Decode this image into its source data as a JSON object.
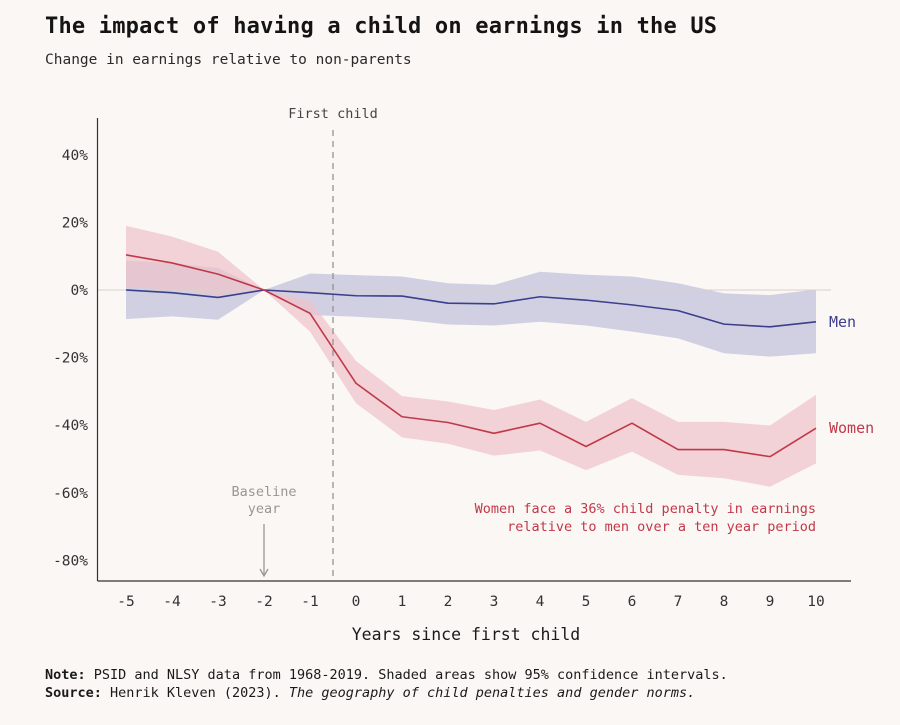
{
  "header": {
    "title": "The impact of having a child on earnings in the US",
    "subtitle": "Change in earnings relative to non-parents"
  },
  "chart_data": {
    "type": "line",
    "title": "The impact of having a child on earnings in the US",
    "subtitle": "Change in earnings relative to non-parents",
    "xlabel": "Years since first child",
    "ylabel": "",
    "x": [
      -5,
      -4,
      -3,
      -2,
      -1,
      0,
      1,
      2,
      3,
      4,
      5,
      6,
      7,
      8,
      9,
      10
    ],
    "xticks": [
      "-5",
      "-4",
      "-3",
      "-2",
      "-1",
      "0",
      "1",
      "2",
      "3",
      "4",
      "5",
      "6",
      "7",
      "8",
      "9",
      "10"
    ],
    "yticks": [
      40,
      20,
      0,
      -20,
      -40,
      -60,
      -80
    ],
    "ytick_labels": [
      "40%",
      "20%",
      "0%",
      "-20%",
      "-40%",
      "-60%",
      "-80%"
    ],
    "ylim": [
      -85,
      52
    ],
    "xlim": [
      -5.6,
      10.75
    ],
    "grid": false,
    "zero_line": true,
    "series": [
      {
        "name": "Men",
        "color": "#3b3f8c",
        "band_color": "#cfcde0",
        "values": [
          0.0,
          -0.8,
          -2.2,
          0.0,
          -0.8,
          -1.7,
          -1.8,
          -3.9,
          -4.1,
          -2.0,
          -3.0,
          -4.4,
          -6.1,
          -10.1,
          -10.9,
          -9.4
        ],
        "ci_upper": [
          8.7,
          8.0,
          6.5,
          0.0,
          4.9,
          4.4,
          4.0,
          2.0,
          1.5,
          5.4,
          4.5,
          4.0,
          2.0,
          -1.0,
          -1.5,
          0.2
        ],
        "ci_lower": [
          -8.6,
          -7.8,
          -8.8,
          0.0,
          -7.4,
          -7.9,
          -8.7,
          -10.2,
          -10.5,
          -9.4,
          -10.5,
          -12.3,
          -14.3,
          -18.7,
          -19.7,
          -18.7
        ]
      },
      {
        "name": "Women",
        "color": "#c0394a",
        "band_color": "#efc4cb",
        "values": [
          10.4,
          8.0,
          4.7,
          0.0,
          -6.9,
          -27.6,
          -37.5,
          -39.2,
          -42.4,
          -39.4,
          -46.3,
          -39.4,
          -47.2,
          -47.2,
          -49.3,
          -40.9
        ],
        "ci_upper": [
          19.0,
          15.8,
          11.3,
          0.0,
          -3.0,
          -21.0,
          -31.4,
          -33.0,
          -35.5,
          -32.4,
          -39.0,
          -32.0,
          -39.0,
          -39.0,
          -40.1,
          -31.0
        ],
        "ci_lower": [
          1.0,
          0.0,
          -1.5,
          0.0,
          -12.3,
          -33.5,
          -43.6,
          -45.5,
          -49.0,
          -47.5,
          -53.3,
          -47.8,
          -54.7,
          -55.7,
          -58.2,
          -51.3
        ]
      }
    ],
    "annotations": {
      "first_child": {
        "label": "First child",
        "x": -0.5
      },
      "baseline": {
        "label_line1": "Baseline",
        "label_line2": "year",
        "x": -2
      },
      "penalty_line1": "Women face a 36% child penalty in earnings",
      "penalty_line2": "relative to men over a ten year period"
    }
  },
  "footer": {
    "note_label": "Note:",
    "note_text": " PSID and NLSY data from 1968-2019. Shaded areas show 95% confidence intervals.",
    "source_label": "Source:",
    "source_text": " Henrik Kleven (2023). ",
    "source_title": "The geography of child penalties and gender norms."
  },
  "colors": {
    "background": "#fbf7f4",
    "axis": "#333333",
    "muted": "#9a9690"
  }
}
